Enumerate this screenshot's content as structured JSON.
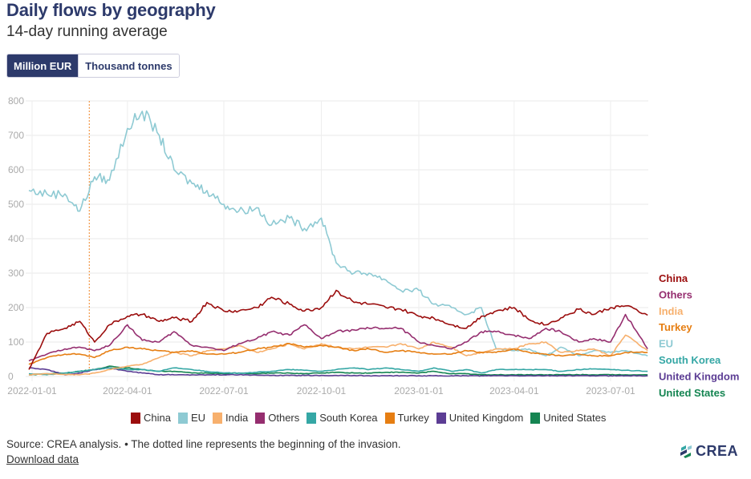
{
  "header": {
    "title": "Daily flows by geography",
    "subtitle": "14-day running average"
  },
  "toggle": {
    "options": [
      "Million EUR",
      "Thousand tonnes"
    ],
    "selected": "Million EUR"
  },
  "footer": {
    "source": "Source: CREA analysis. • The dotted line represents the beginning of the invasion.",
    "download_label": "Download data",
    "logo_text": "CREA"
  },
  "chart_data": {
    "type": "line",
    "title": "Daily flows by geography",
    "subtitle": "14-day running average",
    "xlabel": "",
    "ylabel": "Million EUR",
    "ylim": [
      0,
      800
    ],
    "yticks": [
      0,
      100,
      200,
      300,
      400,
      500,
      600,
      700,
      800
    ],
    "xticks": [
      "2022-01-01",
      "2022-04-01",
      "2022-07-01",
      "2022-10-01",
      "2023-01-01",
      "2023-04-01",
      "2023-07-01"
    ],
    "xrange": [
      "2021-12-29",
      "2023-08-05"
    ],
    "grid": true,
    "legend_position": "bottom",
    "annotation": {
      "type": "vertical-dotted-line",
      "date": "2022-02-24",
      "label": "Beginning of the invasion",
      "color": "#f2994a"
    },
    "x": [
      "2021-12-29",
      "2022-01-15",
      "2022-02-01",
      "2022-02-15",
      "2022-03-01",
      "2022-03-15",
      "2022-04-01",
      "2022-04-15",
      "2022-05-01",
      "2022-05-15",
      "2022-06-01",
      "2022-06-15",
      "2022-07-01",
      "2022-07-15",
      "2022-08-01",
      "2022-08-15",
      "2022-09-01",
      "2022-09-15",
      "2022-10-01",
      "2022-10-15",
      "2022-11-01",
      "2022-11-15",
      "2022-12-01",
      "2022-12-15",
      "2023-01-01",
      "2023-01-15",
      "2023-02-01",
      "2023-02-15",
      "2023-03-01",
      "2023-03-15",
      "2023-04-01",
      "2023-04-15",
      "2023-05-01",
      "2023-05-15",
      "2023-06-01",
      "2023-06-15",
      "2023-07-01",
      "2023-07-15",
      "2023-08-05"
    ],
    "series": [
      {
        "name": "China",
        "color": "#9b0d0d",
        "values": [
          20,
          125,
          140,
          160,
          100,
          150,
          175,
          180,
          160,
          170,
          160,
          215,
          190,
          190,
          200,
          230,
          210,
          190,
          200,
          250,
          215,
          210,
          200,
          195,
          175,
          170,
          150,
          140,
          175,
          190,
          200,
          165,
          150,
          170,
          195,
          180,
          200,
          205,
          178
        ]
      },
      {
        "name": "EU",
        "color": "#8ecad3",
        "values": [
          540,
          530,
          530,
          480,
          580,
          570,
          720,
          770,
          700,
          600,
          560,
          540,
          500,
          480,
          490,
          440,
          460,
          430,
          460,
          330,
          300,
          300,
          280,
          250,
          250,
          210,
          200,
          180,
          200,
          80,
          75,
          80,
          60,
          85,
          60,
          75,
          70,
          75,
          60
        ]
      },
      {
        "name": "India",
        "color": "#f7b06d",
        "values": [
          5,
          8,
          6,
          5,
          10,
          20,
          30,
          35,
          55,
          70,
          60,
          75,
          80,
          90,
          70,
          80,
          95,
          80,
          95,
          85,
          80,
          85,
          85,
          95,
          80,
          100,
          85,
          60,
          70,
          80,
          80,
          95,
          100,
          70,
          75,
          80,
          60,
          120,
          75
        ]
      },
      {
        "name": "Others",
        "color": "#952e6f",
        "values": [
          45,
          65,
          80,
          85,
          75,
          90,
          150,
          105,
          100,
          130,
          90,
          85,
          75,
          95,
          110,
          130,
          120,
          150,
          110,
          130,
          135,
          140,
          140,
          140,
          100,
          90,
          80,
          100,
          130,
          130,
          120,
          110,
          140,
          130,
          100,
          110,
          100,
          180,
          80
        ]
      },
      {
        "name": "South Korea",
        "color": "#35a7a5",
        "values": [
          8,
          5,
          10,
          15,
          20,
          25,
          20,
          20,
          15,
          25,
          20,
          15,
          10,
          10,
          12,
          15,
          20,
          18,
          15,
          20,
          25,
          20,
          25,
          20,
          15,
          25,
          15,
          20,
          10,
          20,
          20,
          20,
          20,
          15,
          20,
          22,
          20,
          18,
          15
        ]
      },
      {
        "name": "Turkey",
        "color": "#e67e12",
        "values": [
          35,
          55,
          65,
          65,
          55,
          75,
          85,
          80,
          75,
          70,
          75,
          65,
          65,
          70,
          80,
          85,
          95,
          85,
          90,
          85,
          75,
          80,
          70,
          75,
          70,
          65,
          65,
          75,
          70,
          70,
          80,
          70,
          65,
          60,
          65,
          60,
          60,
          70,
          70
        ]
      },
      {
        "name": "United Kingdom",
        "color": "#5c3d94",
        "values": [
          25,
          20,
          5,
          10,
          20,
          25,
          15,
          10,
          5,
          5,
          5,
          5,
          5,
          5,
          4,
          3,
          3,
          3,
          3,
          3,
          3,
          2,
          2,
          2,
          2,
          2,
          2,
          2,
          2,
          2,
          2,
          2,
          2,
          2,
          2,
          2,
          2,
          2,
          2
        ]
      },
      {
        "name": "United States",
        "color": "#158552",
        "values": [
          5,
          8,
          10,
          15,
          20,
          30,
          25,
          20,
          15,
          15,
          10,
          10,
          8,
          10,
          8,
          10,
          10,
          8,
          10,
          12,
          10,
          10,
          12,
          12,
          10,
          15,
          8,
          8,
          5,
          5,
          5,
          5,
          5,
          5,
          5,
          5,
          5,
          5,
          5
        ]
      }
    ],
    "end_labels": [
      {
        "name": "China",
        "color": "#9b0d0d"
      },
      {
        "name": "Others",
        "color": "#952e6f"
      },
      {
        "name": "India",
        "color": "#f7b06d"
      },
      {
        "name": "Turkey",
        "color": "#e67e12"
      },
      {
        "name": "EU",
        "color": "#8ecad3"
      },
      {
        "name": "South Korea",
        "color": "#35a7a5"
      },
      {
        "name": "United Kingdom",
        "color": "#5c3d94"
      },
      {
        "name": "United States",
        "color": "#158552"
      }
    ],
    "legend": [
      {
        "name": "China",
        "color": "#9b0d0d"
      },
      {
        "name": "EU",
        "color": "#8ecad3"
      },
      {
        "name": "India",
        "color": "#f7b06d"
      },
      {
        "name": "Others",
        "color": "#952e6f"
      },
      {
        "name": "South Korea",
        "color": "#35a7a5"
      },
      {
        "name": "Turkey",
        "color": "#e67e12"
      },
      {
        "name": "United Kingdom",
        "color": "#5c3d94"
      },
      {
        "name": "United States",
        "color": "#158552"
      }
    ]
  }
}
